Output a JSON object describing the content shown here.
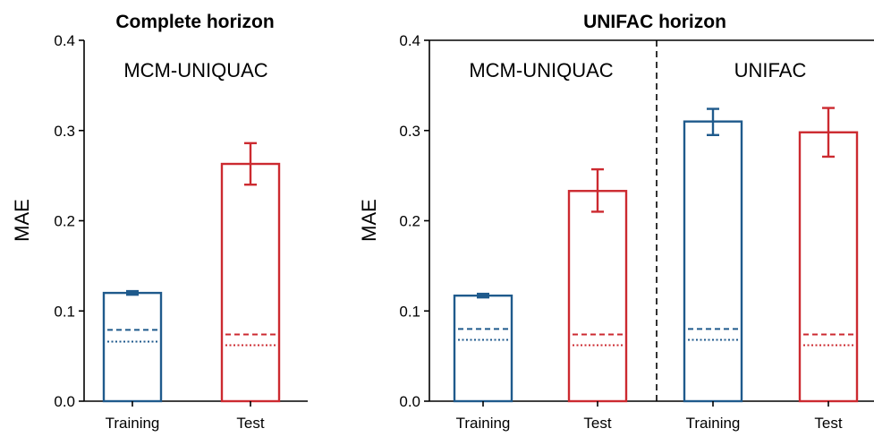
{
  "colors": {
    "training": "#1f5a8c",
    "test": "#cc2a30"
  },
  "chart_data": [
    {
      "type": "bar",
      "title": "Complete horizon",
      "ylabel": "MAE",
      "ylim": [
        0,
        0.4
      ],
      "yticks": [
        "0.0",
        "0.1",
        "0.2",
        "0.3",
        "0.4"
      ],
      "box": "left-bottom",
      "categories": [
        "Training",
        "Test"
      ],
      "regions": [
        {
          "label": "MCM-UNIQUAC",
          "bars": [
            0,
            1
          ]
        }
      ],
      "bars": [
        {
          "category": "Training",
          "value": 0.12,
          "err_low": 0.118,
          "err_high": 0.122,
          "dashed": 0.079,
          "dotted": 0.066,
          "color": "#1f5a8c"
        },
        {
          "category": "Test",
          "value": 0.263,
          "err_low": 0.24,
          "err_high": 0.286,
          "dashed": 0.074,
          "dotted": 0.062,
          "color": "#cc2a30"
        }
      ]
    },
    {
      "type": "bar",
      "title": "UNIFAC horizon",
      "ylabel": "MAE",
      "ylim": [
        0,
        0.4
      ],
      "yticks": [
        "0.0",
        "0.1",
        "0.2",
        "0.3",
        "0.4"
      ],
      "box": "left-bottom-top",
      "categories": [
        "Training",
        "Test",
        "Training",
        "Test"
      ],
      "regions": [
        {
          "label": "MCM-UNIQUAC",
          "bars": [
            0,
            1
          ]
        },
        {
          "label": "UNIFAC",
          "bars": [
            2,
            3
          ]
        }
      ],
      "bars": [
        {
          "category": "Training",
          "value": 0.117,
          "err_low": 0.115,
          "err_high": 0.119,
          "dashed": 0.08,
          "dotted": 0.068,
          "color": "#1f5a8c"
        },
        {
          "category": "Test",
          "value": 0.233,
          "err_low": 0.21,
          "err_high": 0.257,
          "dashed": 0.074,
          "dotted": 0.062,
          "color": "#cc2a30"
        },
        {
          "category": "Training",
          "value": 0.31,
          "err_low": 0.295,
          "err_high": 0.324,
          "dashed": 0.08,
          "dotted": 0.068,
          "color": "#1f5a8c"
        },
        {
          "category": "Test",
          "value": 0.298,
          "err_low": 0.271,
          "err_high": 0.325,
          "dashed": 0.074,
          "dotted": 0.062,
          "color": "#cc2a30"
        }
      ]
    }
  ]
}
